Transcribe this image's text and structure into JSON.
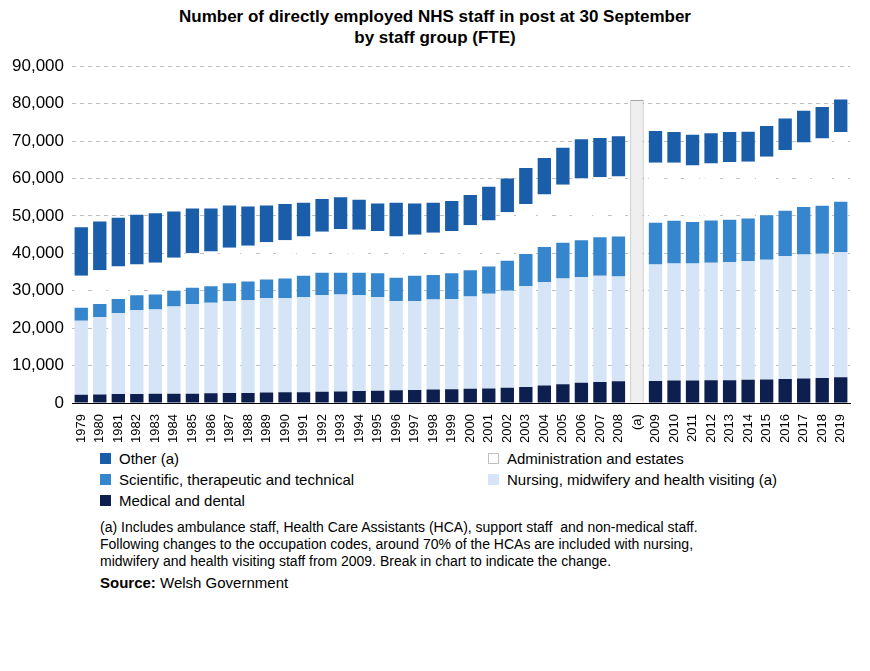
{
  "chart_data": {
    "type": "bar",
    "title": "Number of directly employed NHS staff in post at 30 September by staff group (FTE)",
    "categories": [
      "1979",
      "1980",
      "1981",
      "1982",
      "1983",
      "1984",
      "1985",
      "1986",
      "1987",
      "1988",
      "1989",
      "1990",
      "1991",
      "1992",
      "1993",
      "1994",
      "1995",
      "1996",
      "1997",
      "1998",
      "1999",
      "2000",
      "2001",
      "2002",
      "2003",
      "2004",
      "2005",
      "2006",
      "2007",
      "2008",
      "(a)",
      "2009",
      "2010",
      "2011",
      "2012",
      "2013",
      "2014",
      "2015",
      "2016",
      "2017",
      "2018",
      "2019"
    ],
    "series": [
      {
        "name": "Medical and dental",
        "color": "#0c1f4e",
        "values": [
          2200,
          2300,
          2400,
          2400,
          2500,
          2500,
          2500,
          2600,
          2700,
          2700,
          2800,
          2900,
          2900,
          3000,
          3100,
          3200,
          3300,
          3400,
          3500,
          3600,
          3700,
          3800,
          3900,
          4100,
          4300,
          4700,
          5000,
          5400,
          5600,
          5800,
          null,
          5900,
          6000,
          6000,
          6100,
          6100,
          6200,
          6300,
          6400,
          6600,
          6700,
          6900
        ]
      },
      {
        "name": "Nursing, midwifery and health visiting (a)",
        "color": "#d5e5f7",
        "values": [
          19800,
          20700,
          21600,
          22400,
          22500,
          23300,
          24000,
          24200,
          24500,
          24800,
          25200,
          25100,
          25400,
          25800,
          25900,
          25600,
          25000,
          23900,
          23800,
          24100,
          24100,
          24700,
          25300,
          25900,
          27000,
          27600,
          28300,
          28300,
          28400,
          28000,
          null,
          31100,
          31300,
          31300,
          31400,
          31600,
          31700,
          32000,
          32900,
          33100,
          33200,
          33400
        ]
      },
      {
        "name": "Scientific, therapeutic and technical",
        "color": "#3586cc",
        "values": [
          3500,
          3500,
          3800,
          4000,
          4000,
          4200,
          4300,
          4400,
          4800,
          5000,
          5000,
          5300,
          5700,
          6000,
          5800,
          6000,
          6400,
          6200,
          6700,
          6500,
          6900,
          7000,
          7300,
          8000,
          8500,
          9400,
          9500,
          9800,
          10300,
          10700,
          null,
          11200,
          11400,
          11100,
          11300,
          11300,
          11400,
          11900,
          12100,
          12700,
          12800,
          13500
        ]
      },
      {
        "name": "Administration and estates",
        "color": "#ffffff",
        "values": [
          8500,
          9000,
          8700,
          8200,
          8500,
          8800,
          9200,
          9300,
          9500,
          9500,
          10000,
          10200,
          10500,
          11000,
          11700,
          11500,
          11300,
          11000,
          11000,
          11300,
          11300,
          12000,
          12300,
          13000,
          13400,
          14000,
          15500,
          16500,
          16000,
          16000,
          null,
          16000,
          15500,
          15100,
          15200,
          15400,
          15200,
          15600,
          16200,
          17200,
          18000,
          18600
        ]
      },
      {
        "name": "Other (a)",
        "color": "#1a5da8",
        "values": [
          13000,
          13000,
          13000,
          13300,
          13200,
          12400,
          12000,
          11500,
          11300,
          10500,
          9800,
          9700,
          9000,
          8700,
          8500,
          8000,
          7300,
          9000,
          8300,
          8000,
          8000,
          8100,
          9000,
          9000,
          9600,
          9800,
          9900,
          10500,
          10500,
          10800,
          null,
          8500,
          8200,
          8200,
          8100,
          8000,
          8000,
          8200,
          8400,
          8500,
          8400,
          8700
        ]
      },
      {
        "color": "#efefef",
        "values": [
          null,
          null,
          null,
          null,
          null,
          null,
          null,
          null,
          null,
          null,
          null,
          null,
          null,
          null,
          null,
          null,
          null,
          null,
          null,
          null,
          null,
          null,
          null,
          null,
          null,
          null,
          null,
          null,
          null,
          null,
          81000,
          null,
          null,
          null,
          null,
          null,
          null,
          null,
          null,
          null,
          null,
          null
        ]
      }
    ],
    "stacked": true,
    "ylim": [
      0,
      90000
    ],
    "yticks": [
      0,
      {
        "value": 10000,
        "label": "10,000"
      },
      {
        "value": 20000,
        "label": "20,000"
      },
      {
        "value": 30000,
        "label": "30,000"
      },
      {
        "value": 40000,
        "label": "40,000"
      },
      {
        "value": 50000,
        "label": "50,000"
      },
      {
        "value": 60000,
        "label": "60,000"
      },
      {
        "value": 70000,
        "label": "70,000"
      },
      {
        "value": 80000,
        "label": "80,000"
      },
      {
        "value": 90000,
        "label": "90,000"
      }
    ],
    "grid": true,
    "legend": "bottom",
    "footnote": [
      "(a) Includes ambulance staff, Health Care Assistants (HCA), support staff  and non-medical staff.",
      "Following changes to the occupation codes, around 70% of the HCAs are included with nursing,",
      "midwifery and health visiting staff from 2009. Break in chart to indicate the change."
    ],
    "source": "Source: Welsh Government"
  }
}
